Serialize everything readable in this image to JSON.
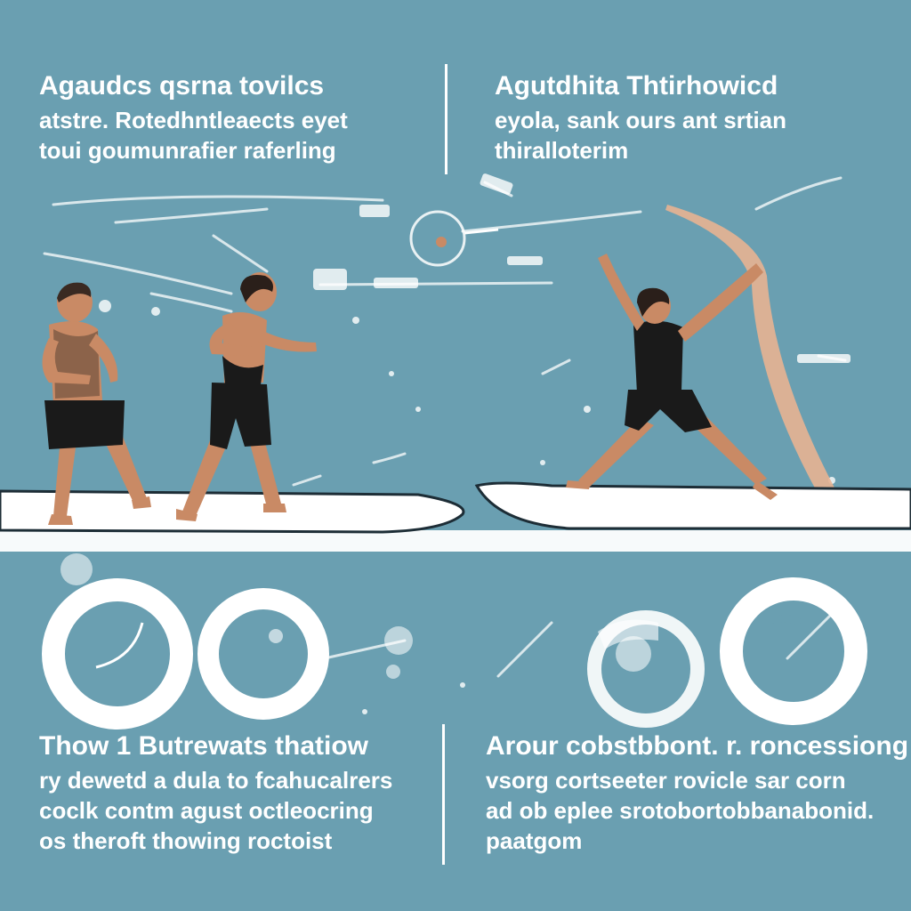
{
  "panels": {
    "top_left": {
      "title": "Agaudcs qsrna tovilcs",
      "lines": [
        "atstre. Rotedhntleaects eyet",
        "toui goumunrafier raferling"
      ]
    },
    "top_right": {
      "title": "Agutdhita Thtirhowicd",
      "lines": [
        "eyola, sank ours ant srtian",
        "thiralloterim"
      ]
    },
    "bottom_left": {
      "title": "Thow 1 Butrewats thatiow",
      "lines": [
        "ry dewetd a dula to fcahucalrers",
        "coclk contm agust octleocring",
        "os theroft thowing roctoist"
      ]
    },
    "bottom_right": {
      "title": "Arour cobstbbont. r. roncessiong",
      "lines": [
        "vsorg cortseeter rovicle sar corn",
        "ad ob eplee srotobortobbanabonid.",
        "paatgom"
      ]
    }
  },
  "colors": {
    "background": "#6a9fb1",
    "white": "#ffffff",
    "skin": "#c98a65",
    "suit": "#1a1a1a",
    "ribbon": "#e8b392"
  },
  "illustration": {
    "figures": [
      "person-standing-icon",
      "person-throwing-icon",
      "person-stretching-icon"
    ],
    "rings": [
      "ring-icon",
      "ring-icon",
      "ring-icon",
      "ring-icon"
    ],
    "boards": [
      "surfboard-icon",
      "surfboard-icon"
    ]
  }
}
